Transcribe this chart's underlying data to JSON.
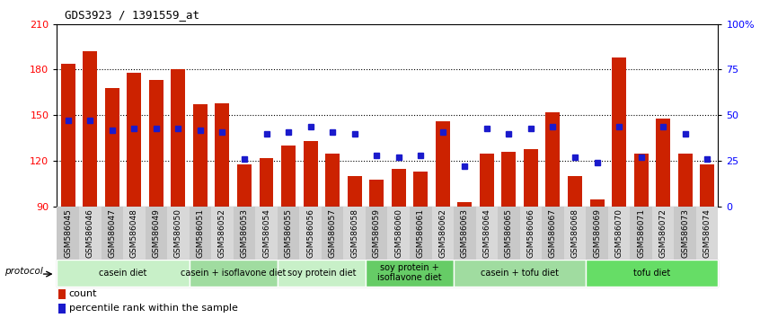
{
  "title": "GDS3923 / 1391559_at",
  "samples": [
    "GSM586045",
    "GSM586046",
    "GSM586047",
    "GSM586048",
    "GSM586049",
    "GSM586050",
    "GSM586051",
    "GSM586052",
    "GSM586053",
    "GSM586054",
    "GSM586055",
    "GSM586056",
    "GSM586057",
    "GSM586058",
    "GSM586059",
    "GSM586060",
    "GSM586061",
    "GSM586062",
    "GSM586063",
    "GSM586064",
    "GSM586065",
    "GSM586066",
    "GSM586067",
    "GSM586068",
    "GSM586069",
    "GSM586070",
    "GSM586071",
    "GSM586072",
    "GSM586073",
    "GSM586074"
  ],
  "counts": [
    184,
    192,
    168,
    178,
    173,
    180,
    157,
    158,
    118,
    122,
    130,
    133,
    125,
    110,
    108,
    115,
    113,
    146,
    93,
    125,
    126,
    128,
    152,
    110,
    95,
    188,
    125,
    148,
    125,
    118
  ],
  "percentile_ranks": [
    47,
    47,
    42,
    43,
    43,
    43,
    42,
    41,
    26,
    40,
    41,
    44,
    41,
    40,
    28,
    27,
    28,
    41,
    22,
    43,
    40,
    43,
    44,
    27,
    24,
    44,
    27,
    44,
    40,
    26
  ],
  "y_min": 90,
  "y_max": 210,
  "y_ticks": [
    90,
    120,
    150,
    180,
    210
  ],
  "y2_ticks_vals": [
    0,
    25,
    50,
    75,
    100
  ],
  "y2_ticks_labels": [
    "0",
    "25",
    "50",
    "75",
    "100%"
  ],
  "bar_color": "#cc2200",
  "dot_color": "#1a1acc",
  "groups": [
    {
      "label": "casein diet",
      "start": 0,
      "end": 5,
      "color": "#c8f0c8"
    },
    {
      "label": "casein + isoflavone diet",
      "start": 6,
      "end": 9,
      "color": "#a0dca0"
    },
    {
      "label": "soy protein diet",
      "start": 10,
      "end": 13,
      "color": "#c8f0c8"
    },
    {
      "label": "soy protein +\nisoflavone diet",
      "start": 14,
      "end": 17,
      "color": "#66cc66"
    },
    {
      "label": "casein + tofu diet",
      "start": 18,
      "end": 23,
      "color": "#a0dca0"
    },
    {
      "label": "tofu diet",
      "start": 24,
      "end": 29,
      "color": "#66dd66"
    }
  ],
  "figsize": [
    8.46,
    3.54
  ],
  "dpi": 100
}
